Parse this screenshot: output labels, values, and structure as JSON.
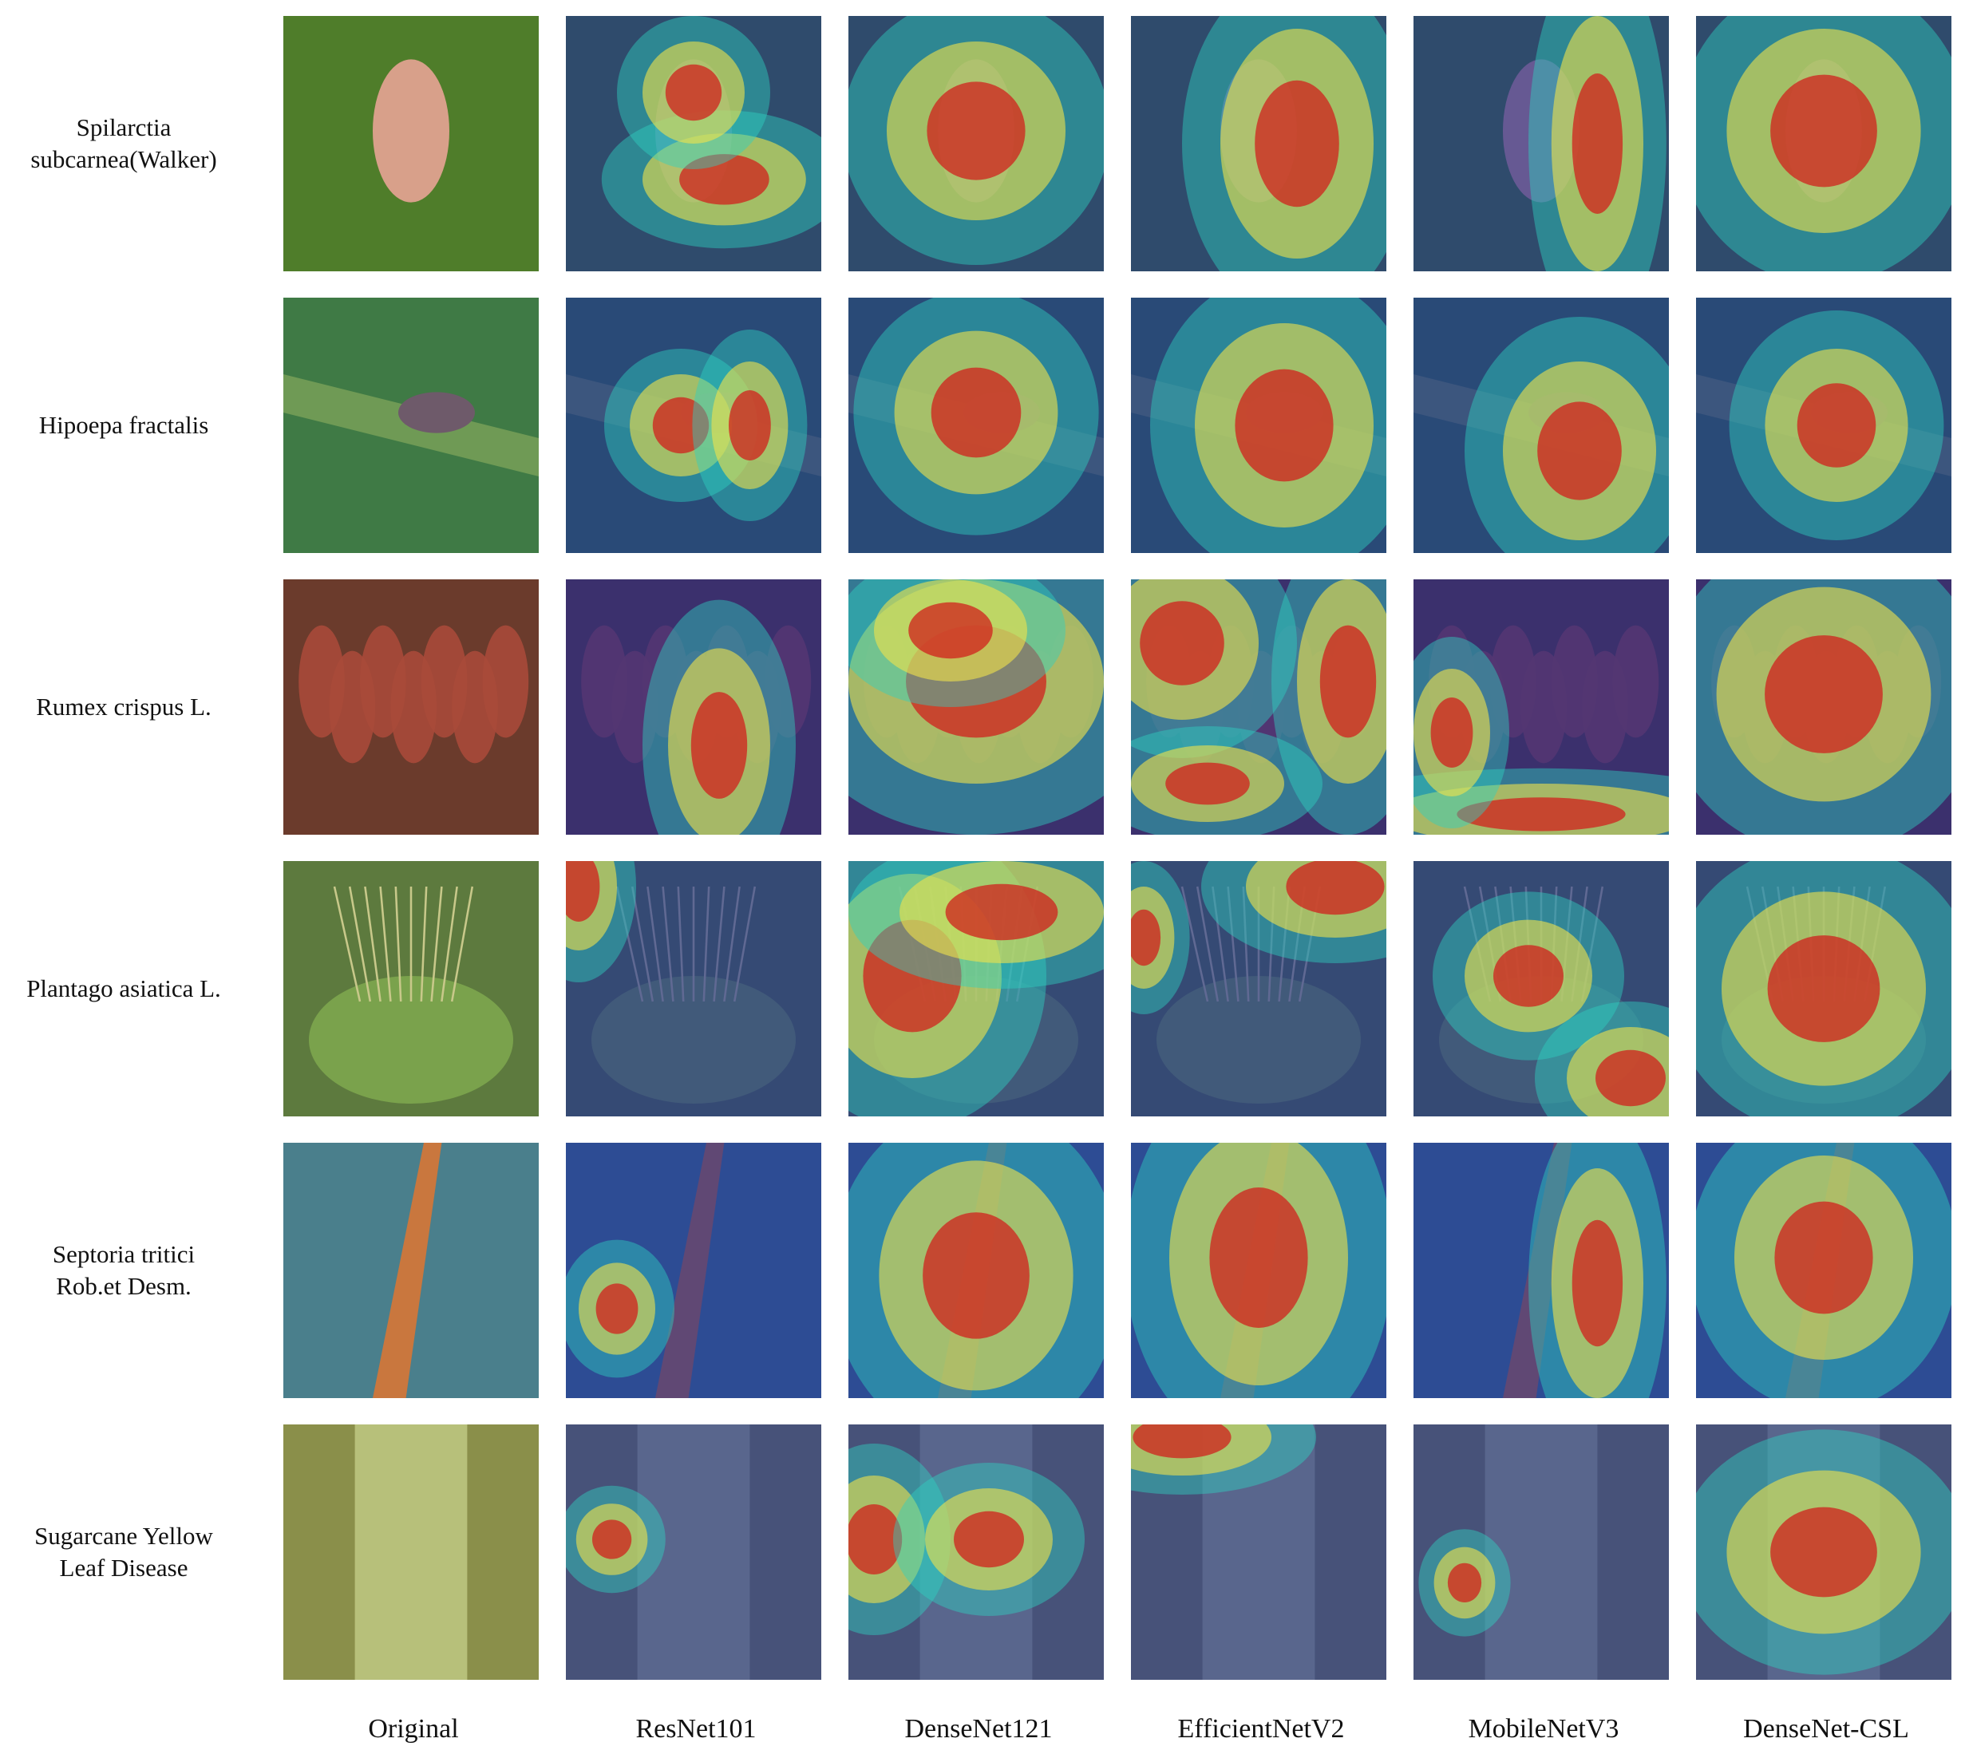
{
  "figure": {
    "rows": [
      {
        "label": "Spilarctia\nsubcarnea(Walker)",
        "subject": "moth on leaf",
        "base_color": "#4f7d2a"
      },
      {
        "label": "Hipoepa fractalis",
        "subject": "moth on grass blade",
        "base_color": "#3f7a45"
      },
      {
        "label": "Rumex crispus L.",
        "subject": "reddish seed heads",
        "base_color": "#6b3b2c"
      },
      {
        "label": "Plantago asiatica L.",
        "subject": "plantain plant",
        "base_color": "#5d7a3e"
      },
      {
        "label": "Septoria tritici\nRob.et Desm.",
        "subject": "diseased wheat leaf",
        "base_color": "#4a7f8c"
      },
      {
        "label": "Sugarcane Yellow\nLeaf Disease",
        "subject": "sugarcane leaf",
        "base_color": "#8a8f4a"
      }
    ],
    "columns": [
      {
        "label": "Original"
      },
      {
        "label": "ResNet101"
      },
      {
        "label": "DenseNet121"
      },
      {
        "label": "EfficientNetV2"
      },
      {
        "label": "MobileNetV3"
      },
      {
        "label": "DenseNet-CSL"
      }
    ],
    "heatmap_colors": {
      "low": "#1b2a9a",
      "mid": "#2fd0c0",
      "high_mid": "#f2e24a",
      "high": "#d0201c"
    }
  }
}
